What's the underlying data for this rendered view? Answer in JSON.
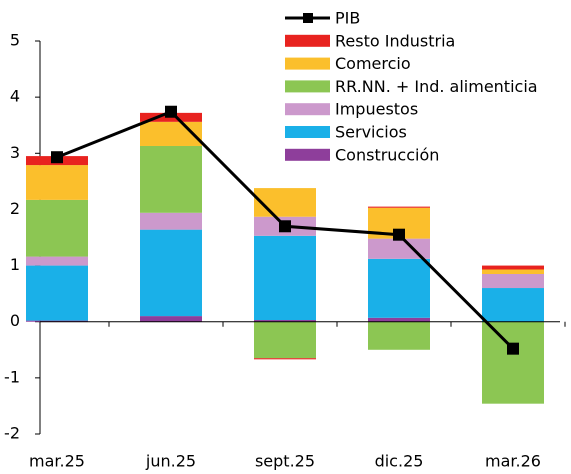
{
  "chart_data": {
    "type": "bar",
    "stacked": true,
    "categories": [
      "mar.25",
      "jun.25",
      "sept.25",
      "dic.25",
      "mar.26"
    ],
    "series": [
      {
        "name": "Construcción",
        "color": "#8e3e9b",
        "values": [
          0.02,
          0.1,
          0.03,
          0.07,
          0
        ]
      },
      {
        "name": "Servicios",
        "color": "#1ab0e8",
        "values": [
          0.98,
          1.54,
          1.5,
          1.05,
          0.6
        ]
      },
      {
        "name": "Impuestos",
        "color": "#cc99cc",
        "values": [
          0.16,
          0.3,
          0.34,
          0.36,
          0.25
        ]
      },
      {
        "name": "RR.NN. + Ind. alimenticia",
        "color": "#8cc653",
        "values": [
          1.01,
          1.19,
          -0.65,
          -0.5,
          -1.46
        ]
      },
      {
        "name": "Comercio",
        "color": "#fbbf2c",
        "values": [
          0.62,
          0.43,
          0.51,
          0.55,
          0.08
        ]
      },
      {
        "name": "Resto Industria",
        "color": "#e8231f",
        "values": [
          0.16,
          0.16,
          -0.02,
          0.02,
          0.07
        ]
      }
    ],
    "line": {
      "name": "PIB",
      "color": "#000000",
      "values": [
        2.93,
        3.74,
        1.7,
        1.55,
        -0.48
      ]
    },
    "ylim": [
      -2,
      5
    ],
    "yticks": [
      -2,
      -1,
      0,
      1,
      2,
      3,
      4,
      5
    ]
  }
}
